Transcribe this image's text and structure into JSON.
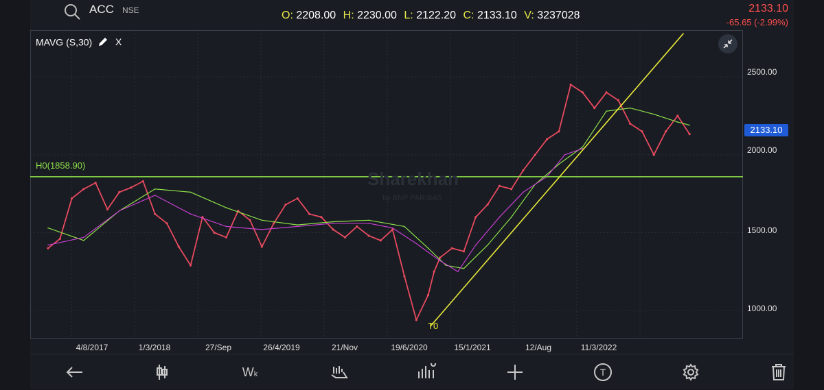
{
  "header": {
    "symbol": "ACC",
    "exchange": "NSE",
    "ohlc": {
      "o_key": "O:",
      "o_val": "2208.00",
      "h_key": "H:",
      "h_val": "2230.00",
      "l_key": "L:",
      "l_val": "2122.20",
      "c_key": "C:",
      "c_val": "2133.10",
      "v_key": "V:",
      "v_val": "3237028"
    },
    "last_price": "2133.10",
    "change": "-65.65 (-2.99%)"
  },
  "study": {
    "label": "MAVG (S,30)",
    "close": "X"
  },
  "hline_label": "H0(1858.90)",
  "trendline_label": "T0",
  "watermark": {
    "main": "Sharekhan",
    "sub": "by BNP PARIBAS"
  },
  "chart_data": {
    "type": "line",
    "title": "",
    "y_ticks": [
      "2500.00",
      "2000.00",
      "1500.00",
      "1000.00"
    ],
    "x_ticks": [
      "4/8/2017",
      "1/3/2018",
      "27/Sep",
      "26/4/2019",
      "21/Nov",
      "19/6/2020",
      "15/1/2021",
      "12/Aug",
      "11/3/2022"
    ],
    "ylim": [
      820,
      2800
    ],
    "last_value": "2133.10",
    "horizontal_line": 1858.9,
    "trendline": {
      "from": [
        2020.22,
        900
      ],
      "to": [
        2022.35,
        2780
      ]
    },
    "series": [
      {
        "name": "",
        "color": "#e84a5f",
        "x": [
          2017.0,
          2017.1,
          2017.2,
          2017.3,
          2017.4,
          2017.5,
          2017.6,
          2017.7,
          2017.8,
          2017.9,
          2018.0,
          2018.1,
          2018.2,
          2018.3,
          2018.4,
          2018.5,
          2018.6,
          2018.7,
          2018.8,
          2018.9,
          2019.0,
          2019.1,
          2019.2,
          2019.3,
          2019.4,
          2019.5,
          2019.6,
          2019.7,
          2019.8,
          2019.9,
          2020.0,
          2020.1,
          2020.2,
          2020.25,
          2020.3,
          2020.4,
          2020.5,
          2020.6,
          2020.7,
          2020.8,
          2020.9,
          2021.0,
          2021.1,
          2021.2,
          2021.3,
          2021.4,
          2021.5,
          2021.6,
          2021.7,
          2021.8,
          2021.9,
          2022.0,
          2022.1,
          2022.2,
          2022.3,
          2022.4
        ],
        "values": [
          1400,
          1460,
          1720,
          1780,
          1820,
          1650,
          1760,
          1790,
          1830,
          1620,
          1560,
          1410,
          1290,
          1600,
          1500,
          1470,
          1640,
          1580,
          1410,
          1560,
          1680,
          1720,
          1620,
          1600,
          1520,
          1470,
          1540,
          1480,
          1450,
          1520,
          1220,
          940,
          1100,
          1250,
          1340,
          1400,
          1380,
          1600,
          1680,
          1800,
          1780,
          1900,
          2000,
          2100,
          2150,
          2450,
          2400,
          2300,
          2400,
          2350,
          2200,
          2150,
          2000,
          2150,
          2250,
          2133
        ]
      },
      {
        "name": "",
        "color": "#8ee04a",
        "x": [
          2017.0,
          2017.3,
          2017.6,
          2017.9,
          2018.2,
          2018.5,
          2018.8,
          2019.1,
          2019.4,
          2019.7,
          2020.0,
          2020.2,
          2020.35,
          2020.5,
          2020.7,
          2020.9,
          2021.1,
          2021.3,
          2021.5,
          2021.7,
          2021.9,
          2022.1,
          2022.3,
          2022.4
        ],
        "values": [
          1530,
          1450,
          1640,
          1780,
          1760,
          1660,
          1580,
          1550,
          1570,
          1580,
          1540,
          1400,
          1290,
          1270,
          1420,
          1600,
          1810,
          1940,
          2050,
          2280,
          2300,
          2260,
          2210,
          2190
        ]
      },
      {
        "name": "",
        "color": "#c43fd0",
        "x": [
          2017.0,
          2017.3,
          2017.6,
          2017.9,
          2018.2,
          2018.5,
          2018.8,
          2019.1,
          2019.4,
          2019.7,
          2019.9,
          2020.1,
          2020.3,
          2020.45,
          2020.6,
          2020.8,
          2021.0,
          2021.2,
          2021.35,
          2021.5
        ],
        "values": [
          1420,
          1470,
          1640,
          1740,
          1620,
          1540,
          1520,
          1540,
          1560,
          1560,
          1530,
          1430,
          1320,
          1250,
          1420,
          1600,
          1760,
          1860,
          2000,
          2040
        ]
      }
    ]
  },
  "toolbar": [
    {
      "name": "back-arrow-icon"
    },
    {
      "name": "candlestick-icon"
    },
    {
      "name": "weekly-interval",
      "label": "W",
      "sub": "k"
    },
    {
      "name": "chart-type-icon"
    },
    {
      "name": "indicators-icon"
    },
    {
      "name": "crosshair-icon"
    },
    {
      "name": "text-tool-icon",
      "label": "T"
    },
    {
      "name": "settings-icon"
    },
    {
      "name": "trash-icon"
    }
  ]
}
